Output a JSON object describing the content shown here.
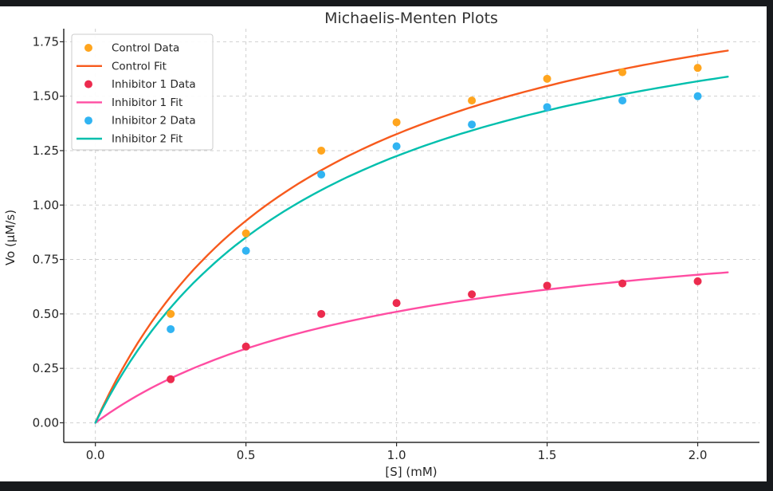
{
  "chart_data": {
    "type": "scatter",
    "title": "Michaelis-Menten Plots",
    "xlabel": "[S] (mM)",
    "ylabel": "Vo (µM/s)",
    "xlim": [
      -0.105,
      2.205
    ],
    "ylim": [
      -0.09,
      1.81
    ],
    "grid": "both-dashed",
    "legend_position": "upper left",
    "x_ticks": {
      "values": [
        0.0,
        0.5,
        1.0,
        1.5,
        2.0
      ],
      "labels": [
        "0.0",
        "0.5",
        "1.0",
        "1.5",
        "2.0"
      ]
    },
    "y_ticks": {
      "values": [
        0.0,
        0.25,
        0.5,
        0.75,
        1.0,
        1.25,
        1.5,
        1.75
      ],
      "labels": [
        "0.00",
        "0.25",
        "0.50",
        "0.75",
        "1.00",
        "1.25",
        "1.50",
        "1.75"
      ]
    },
    "x": [
      0.25,
      0.5,
      0.75,
      1.0,
      1.25,
      1.5,
      1.75,
      2.0
    ],
    "curve_x_range": [
      0,
      2.1
    ],
    "series": [
      {
        "name": "Control Data",
        "kind": "scatter",
        "color": "#FFA51E",
        "values": [
          0.5,
          0.87,
          1.25,
          1.38,
          1.48,
          1.58,
          1.61,
          1.63
        ]
      },
      {
        "name": "Control Fit",
        "kind": "line",
        "color": "#F75A1D",
        "fit": {
          "vmax": 2.32,
          "km": 0.75
        }
      },
      {
        "name": "Inhibitor 1 Data",
        "kind": "scatter",
        "color": "#EC2B4E",
        "values": [
          0.2,
          0.35,
          0.5,
          0.55,
          0.59,
          0.63,
          0.64,
          0.65
        ]
      },
      {
        "name": "Inhibitor 1 Fit",
        "kind": "line",
        "color": "#FF4DA2",
        "fit": {
          "vmax": 1.02,
          "km": 1.0
        }
      },
      {
        "name": "Inhibitor 2 Data",
        "kind": "scatter",
        "color": "#31B4F2",
        "values": [
          0.43,
          0.79,
          1.14,
          1.27,
          1.37,
          1.45,
          1.48,
          1.5
        ]
      },
      {
        "name": "Inhibitor 2 Fit",
        "kind": "line",
        "color": "#00BFAD",
        "fit": {
          "vmax": 2.18,
          "km": 0.78
        }
      }
    ],
    "colors": {
      "grid": "#cfcfcf",
      "spine": "#2a2a2a",
      "text": "#262626",
      "figure_background": "#ffffff",
      "letterbox": "#17191c",
      "legend_border": "#cccccc",
      "legend_background": "#ffffff"
    }
  }
}
